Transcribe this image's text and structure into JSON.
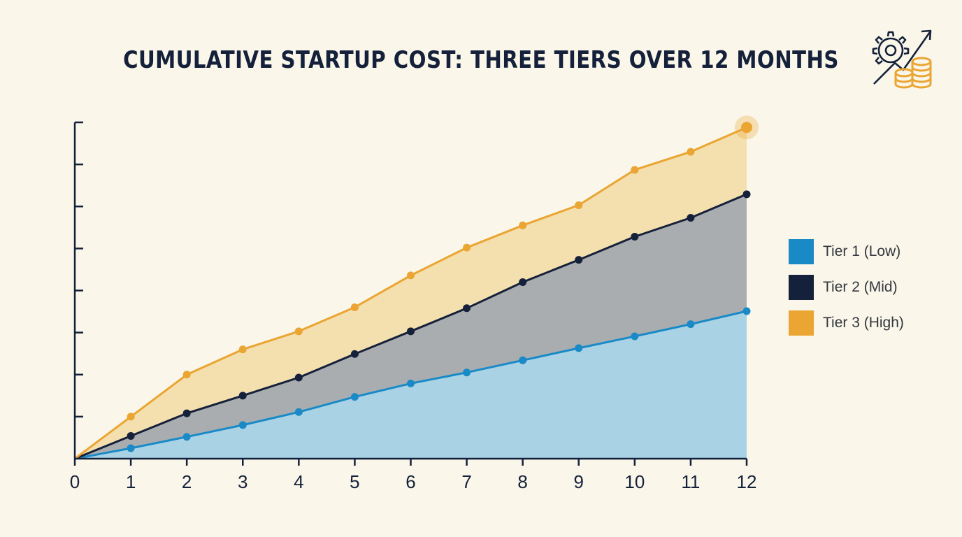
{
  "title": "CUMULATIVE STARTUP COST: THREE TIERS OVER 12 MONTHS",
  "icon": "gear-growth-coins-icon",
  "colors": {
    "background": "#faf6ea",
    "axis": "#15213a",
    "tier1": "#1a8ac7",
    "tier2": "#15213a",
    "tier3": "#eaa532"
  },
  "chart_data": {
    "type": "area",
    "stacked": false,
    "title": "CUMULATIVE STARTUP COST: THREE TIERS OVER 12 MONTHS",
    "xlabel": "",
    "ylabel": "",
    "x": [
      0,
      1,
      2,
      3,
      4,
      5,
      6,
      7,
      8,
      9,
      10,
      11,
      12
    ],
    "xlim": [
      0,
      12
    ],
    "ylim": [
      0,
      8
    ],
    "y_tick_count": 8,
    "y_tick_labels_shown": false,
    "grid": false,
    "legend_position": "right",
    "series": [
      {
        "name": "Tier 1 (Low)",
        "color": "#1a8ac7",
        "fill": "#a9d3e4",
        "values": [
          0,
          0.25,
          0.52,
          0.8,
          1.11,
          1.47,
          1.79,
          2.05,
          2.34,
          2.63,
          2.91,
          3.2,
          3.51
        ]
      },
      {
        "name": "Tier 2 (Mid)",
        "color": "#15213a",
        "fill": "#aaadb0",
        "values": [
          0,
          0.54,
          1.08,
          1.5,
          1.93,
          2.49,
          3.03,
          3.58,
          4.2,
          4.73,
          5.28,
          5.73,
          6.29
        ]
      },
      {
        "name": "Tier 3 (High)",
        "color": "#eaa532",
        "fill": "#f4dfae",
        "values": [
          0,
          1.0,
          2.0,
          2.6,
          3.03,
          3.6,
          4.36,
          5.02,
          5.55,
          6.03,
          6.87,
          7.3,
          7.88
        ]
      }
    ]
  }
}
